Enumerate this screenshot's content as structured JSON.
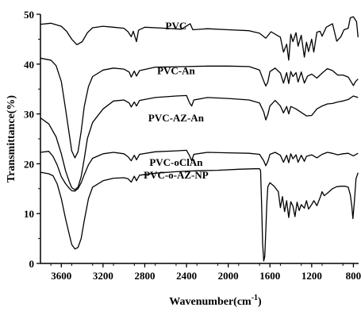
{
  "chart_data": {
    "type": "line",
    "title": "",
    "xlabel": "Wavenumber(cm",
    "xlabel_sup": "-1",
    "xlabel_close": ")",
    "ylabel": "Transmittance(%)",
    "xlim": [
      3800,
      750
    ],
    "ylim": [
      0,
      50
    ],
    "x_reversed": true,
    "grid": false,
    "legend": "none (labels placed on curves)",
    "x_ticks": [
      3600,
      3200,
      2800,
      2400,
      2000,
      1600,
      1200,
      800
    ],
    "y_ticks": [
      0,
      10,
      20,
      30,
      40,
      50
    ],
    "series": [
      {
        "name": "PVC",
        "label_at": [
          2500,
          47
        ],
        "points": [
          [
            3800,
            48
          ],
          [
            3700,
            48.2
          ],
          [
            3600,
            47.6
          ],
          [
            3550,
            46.6
          ],
          [
            3500,
            45
          ],
          [
            3450,
            43.9
          ],
          [
            3400,
            44.5
          ],
          [
            3350,
            46.3
          ],
          [
            3300,
            47.3
          ],
          [
            3200,
            47.6
          ],
          [
            3100,
            47.4
          ],
          [
            3000,
            47.2
          ],
          [
            2960,
            46.5
          ],
          [
            2930,
            45.5
          ],
          [
            2910,
            46.6
          ],
          [
            2880,
            44.5
          ],
          [
            2860,
            46.8
          ],
          [
            2800,
            47.4
          ],
          [
            2600,
            47.2
          ],
          [
            2450,
            47
          ],
          [
            2365,
            48.1
          ],
          [
            2340,
            46.9
          ],
          [
            2200,
            47.1
          ],
          [
            2000,
            46.9
          ],
          [
            1800,
            46.7
          ],
          [
            1700,
            46.2
          ],
          [
            1640,
            45.2
          ],
          [
            1590,
            46.5
          ],
          [
            1500,
            45.4
          ],
          [
            1470,
            42.4
          ],
          [
            1440,
            44
          ],
          [
            1420,
            40.8
          ],
          [
            1400,
            46
          ],
          [
            1380,
            44.5
          ],
          [
            1350,
            46.3
          ],
          [
            1330,
            43.6
          ],
          [
            1300,
            45.8
          ],
          [
            1270,
            41.4
          ],
          [
            1250,
            44.4
          ],
          [
            1230,
            42.5
          ],
          [
            1200,
            45
          ],
          [
            1180,
            42.4
          ],
          [
            1150,
            46.4
          ],
          [
            1120,
            46.6
          ],
          [
            1100,
            45.6
          ],
          [
            1060,
            47.4
          ],
          [
            1000,
            48.1
          ],
          [
            960,
            44.6
          ],
          [
            920,
            45.5
          ],
          [
            890,
            46.9
          ],
          [
            850,
            47.2
          ],
          [
            830,
            49.3
          ],
          [
            800,
            49.5
          ],
          [
            770,
            48.5
          ],
          [
            755,
            45.4
          ]
        ]
      },
      {
        "name": "PVC-An",
        "label_at": [
          2500,
          38
        ],
        "points": [
          [
            3800,
            41.2
          ],
          [
            3700,
            40.8
          ],
          [
            3650,
            39.7
          ],
          [
            3600,
            36.5
          ],
          [
            3560,
            31
          ],
          [
            3520,
            25.4
          ],
          [
            3500,
            22.6
          ],
          [
            3470,
            21.2
          ],
          [
            3440,
            22.4
          ],
          [
            3410,
            26.5
          ],
          [
            3380,
            31.5
          ],
          [
            3340,
            35.5
          ],
          [
            3300,
            37.5
          ],
          [
            3200,
            38.8
          ],
          [
            3100,
            39.2
          ],
          [
            3000,
            39
          ],
          [
            2950,
            38.4
          ],
          [
            2930,
            37.4
          ],
          [
            2900,
            38.6
          ],
          [
            2880,
            37.6
          ],
          [
            2850,
            38.7
          ],
          [
            2700,
            39.4
          ],
          [
            2400,
            39.5
          ],
          [
            2200,
            39.6
          ],
          [
            2000,
            39.6
          ],
          [
            1800,
            39.5
          ],
          [
            1700,
            38.8
          ],
          [
            1660,
            36.6
          ],
          [
            1640,
            35.6
          ],
          [
            1620,
            36.4
          ],
          [
            1600,
            38.5
          ],
          [
            1550,
            39.2
          ],
          [
            1500,
            38.2
          ],
          [
            1470,
            36.2
          ],
          [
            1440,
            38.3
          ],
          [
            1420,
            36.1
          ],
          [
            1400,
            38.5
          ],
          [
            1380,
            37.5
          ],
          [
            1350,
            38.3
          ],
          [
            1330,
            36.4
          ],
          [
            1300,
            38.4
          ],
          [
            1270,
            36.2
          ],
          [
            1240,
            37.6
          ],
          [
            1200,
            38
          ],
          [
            1150,
            37.2
          ],
          [
            1100,
            38.2
          ],
          [
            1050,
            39.1
          ],
          [
            1000,
            38.7
          ],
          [
            950,
            37.8
          ],
          [
            900,
            37.8
          ],
          [
            850,
            37.4
          ],
          [
            800,
            35.7
          ],
          [
            780,
            36.5
          ],
          [
            755,
            37
          ]
        ]
      },
      {
        "name": "PVC-AZ-An",
        "label_at": [
          2500,
          28.5
        ],
        "points": [
          [
            3800,
            29.2
          ],
          [
            3720,
            28
          ],
          [
            3650,
            25.4
          ],
          [
            3600,
            22
          ],
          [
            3560,
            18.6
          ],
          [
            3520,
            16.2
          ],
          [
            3500,
            15.2
          ],
          [
            3470,
            14.8
          ],
          [
            3440,
            15.3
          ],
          [
            3410,
            17.4
          ],
          [
            3380,
            21
          ],
          [
            3350,
            25.1
          ],
          [
            3300,
            28.3
          ],
          [
            3200,
            31
          ],
          [
            3100,
            32.6
          ],
          [
            3000,
            32.8
          ],
          [
            2950,
            32.2
          ],
          [
            2930,
            31.4
          ],
          [
            2900,
            32.4
          ],
          [
            2880,
            31.6
          ],
          [
            2850,
            32.7
          ],
          [
            2700,
            33.3
          ],
          [
            2500,
            33.6
          ],
          [
            2400,
            33.7
          ],
          [
            2370,
            32.2
          ],
          [
            2350,
            31.6
          ],
          [
            2330,
            32.8
          ],
          [
            2200,
            33.3
          ],
          [
            2000,
            33.1
          ],
          [
            1800,
            32.8
          ],
          [
            1700,
            32.2
          ],
          [
            1660,
            30.4
          ],
          [
            1640,
            28.8
          ],
          [
            1620,
            29.9
          ],
          [
            1600,
            31.6
          ],
          [
            1550,
            32.7
          ],
          [
            1500,
            31.6
          ],
          [
            1470,
            30.2
          ],
          [
            1440,
            31.5
          ],
          [
            1420,
            30
          ],
          [
            1400,
            31.5
          ],
          [
            1350,
            31
          ],
          [
            1300,
            30.3
          ],
          [
            1250,
            29.6
          ],
          [
            1200,
            29.7
          ],
          [
            1150,
            31
          ],
          [
            1100,
            31.6
          ],
          [
            1050,
            32
          ],
          [
            1000,
            32.1
          ],
          [
            950,
            32.4
          ],
          [
            900,
            32.6
          ],
          [
            850,
            32.9
          ],
          [
            800,
            33.6
          ],
          [
            755,
            33.3
          ]
        ]
      },
      {
        "name": "PVC-oClAn",
        "label_at": [
          2500,
          19.6
        ],
        "points": [
          [
            3800,
            22.3
          ],
          [
            3720,
            22.5
          ],
          [
            3680,
            21.5
          ],
          [
            3640,
            19.8
          ],
          [
            3600,
            17.4
          ],
          [
            3560,
            16
          ],
          [
            3520,
            15
          ],
          [
            3500,
            14.6
          ],
          [
            3470,
            14.5
          ],
          [
            3440,
            15
          ],
          [
            3410,
            16.2
          ],
          [
            3380,
            17.8
          ],
          [
            3340,
            19.8
          ],
          [
            3300,
            21.1
          ],
          [
            3200,
            22
          ],
          [
            3100,
            22.3
          ],
          [
            3000,
            22
          ],
          [
            2960,
            21.4
          ],
          [
            2930,
            20.6
          ],
          [
            2900,
            21.7
          ],
          [
            2880,
            20.8
          ],
          [
            2850,
            21.9
          ],
          [
            2700,
            22.4
          ],
          [
            2500,
            22.6
          ],
          [
            2400,
            22.7
          ],
          [
            2370,
            21.6
          ],
          [
            2350,
            20.6
          ],
          [
            2330,
            21.9
          ],
          [
            2200,
            22.3
          ],
          [
            2000,
            22.2
          ],
          [
            1800,
            22.1
          ],
          [
            1700,
            21.9
          ],
          [
            1660,
            20.6
          ],
          [
            1640,
            19.6
          ],
          [
            1620,
            20.5
          ],
          [
            1600,
            21.9
          ],
          [
            1550,
            22.3
          ],
          [
            1500,
            21.7
          ],
          [
            1470,
            20.3
          ],
          [
            1440,
            21.7
          ],
          [
            1420,
            20.2
          ],
          [
            1400,
            22
          ],
          [
            1380,
            21
          ],
          [
            1350,
            21.8
          ],
          [
            1330,
            20.3
          ],
          [
            1300,
            21.7
          ],
          [
            1270,
            20.5
          ],
          [
            1250,
            21.5
          ],
          [
            1200,
            21.8
          ],
          [
            1150,
            21.2
          ],
          [
            1100,
            21.9
          ],
          [
            1050,
            22.3
          ],
          [
            1000,
            22.1
          ],
          [
            950,
            21.8
          ],
          [
            900,
            22
          ],
          [
            850,
            22.1
          ],
          [
            800,
            21.6
          ],
          [
            755,
            22.1
          ]
        ]
      },
      {
        "name": "PVC-o-AZ-NP",
        "label_at": [
          2500,
          17
        ],
        "points": [
          [
            3800,
            18.3
          ],
          [
            3720,
            18
          ],
          [
            3680,
            17.6
          ],
          [
            3640,
            16
          ],
          [
            3600,
            13
          ],
          [
            3560,
            9
          ],
          [
            3520,
            5.5
          ],
          [
            3500,
            3.8
          ],
          [
            3470,
            2.9
          ],
          [
            3440,
            3.2
          ],
          [
            3410,
            5
          ],
          [
            3380,
            8.6
          ],
          [
            3340,
            13
          ],
          [
            3300,
            15.3
          ],
          [
            3200,
            16.6
          ],
          [
            3100,
            17.1
          ],
          [
            3000,
            17.2
          ],
          [
            2960,
            17
          ],
          [
            2930,
            16.3
          ],
          [
            2900,
            17.5
          ],
          [
            2880,
            16.6
          ],
          [
            2850,
            17.7
          ],
          [
            2700,
            18.1
          ],
          [
            2500,
            18.4
          ],
          [
            2300,
            18.6
          ],
          [
            2100,
            18.7
          ],
          [
            1900,
            18.9
          ],
          [
            1750,
            19
          ],
          [
            1700,
            19
          ],
          [
            1690,
            18.7
          ],
          [
            1680,
            12
          ],
          [
            1670,
            4
          ],
          [
            1660,
            0.5
          ],
          [
            1650,
            1.4
          ],
          [
            1640,
            6.5
          ],
          [
            1630,
            12
          ],
          [
            1620,
            15.4
          ],
          [
            1600,
            16.2
          ],
          [
            1560,
            15.5
          ],
          [
            1520,
            14.4
          ],
          [
            1500,
            11.2
          ],
          [
            1480,
            13.4
          ],
          [
            1460,
            10.4
          ],
          [
            1440,
            12.6
          ],
          [
            1420,
            9.2
          ],
          [
            1400,
            12.4
          ],
          [
            1380,
            11.5
          ],
          [
            1360,
            9.4
          ],
          [
            1340,
            12.3
          ],
          [
            1320,
            10.6
          ],
          [
            1300,
            11.8
          ],
          [
            1270,
            11.1
          ],
          [
            1250,
            12.6
          ],
          [
            1230,
            10.9
          ],
          [
            1200,
            11.8
          ],
          [
            1180,
            12.6
          ],
          [
            1150,
            11.6
          ],
          [
            1120,
            13.2
          ],
          [
            1100,
            14.4
          ],
          [
            1080,
            13.6
          ],
          [
            1050,
            14.1
          ],
          [
            1000,
            15
          ],
          [
            960,
            15.4
          ],
          [
            920,
            15.5
          ],
          [
            880,
            15.5
          ],
          [
            850,
            15.3
          ],
          [
            830,
            13.8
          ],
          [
            815,
            11.4
          ],
          [
            805,
            9
          ],
          [
            790,
            12.5
          ],
          [
            775,
            17
          ],
          [
            755,
            18.2
          ]
        ]
      }
    ]
  }
}
